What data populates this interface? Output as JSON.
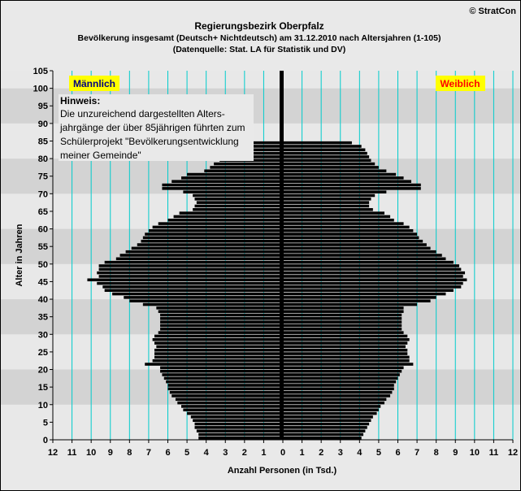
{
  "header": {
    "title": "Regierungsbezirk Oberpfalz",
    "subtitle": "Bevölkerung  insgesamt (Deutsch+ Nichtdeutsch) am 31.12.2010 nach Altersjahren (1-105)",
    "source": "(Datenquelle: Stat. LA für Statistik und DV)",
    "copyright": "© StratCon"
  },
  "labels": {
    "male": "Männlich",
    "female": "Weiblich",
    "note_title": "Hinweis:",
    "note_lines": [
      "Die unzureichend dargestellten Alters-",
      "jahrgänge der über 85jährigen führten zum",
      "Schülerprojekt \"Bevölkerungsentwicklung",
      "meiner Gemeinde\""
    ]
  },
  "colors": {
    "bars": "#000000",
    "gridlines": "#00cccc",
    "label_box": "#ffff00",
    "male_text": "#000080",
    "female_text": "#ff0000",
    "band_light": "#e8e8e8",
    "band_dark": "#d3d3d3"
  },
  "chart_data": {
    "type": "bar",
    "orientation": "horizontal-population-pyramid",
    "xlabel": "Anzahl Personen (in Tsd.)",
    "ylabel": "Alter in Jahren",
    "xlim": [
      -12,
      12
    ],
    "ylim": [
      0,
      105
    ],
    "x_ticks": [
      12,
      11,
      10,
      9,
      8,
      7,
      6,
      5,
      4,
      3,
      2,
      1,
      0,
      1,
      2,
      3,
      4,
      5,
      6,
      7,
      8,
      9,
      10,
      11,
      12
    ],
    "y_ticks": [
      0,
      5,
      10,
      15,
      20,
      25,
      30,
      35,
      40,
      45,
      50,
      55,
      60,
      65,
      70,
      75,
      80,
      85,
      90,
      95,
      100,
      105
    ],
    "grid": true,
    "legend": [
      "Männlich (left)",
      "Weiblich (right)"
    ],
    "ages": [
      0,
      1,
      2,
      3,
      4,
      5,
      6,
      7,
      8,
      9,
      10,
      11,
      12,
      13,
      14,
      15,
      16,
      17,
      18,
      19,
      20,
      21,
      22,
      23,
      24,
      25,
      26,
      27,
      28,
      29,
      30,
      31,
      32,
      33,
      34,
      35,
      36,
      37,
      38,
      39,
      40,
      41,
      42,
      43,
      44,
      45,
      46,
      47,
      48,
      49,
      50,
      51,
      52,
      53,
      54,
      55,
      56,
      57,
      58,
      59,
      60,
      61,
      62,
      63,
      64,
      65,
      66,
      67,
      68,
      69,
      70,
      71,
      72,
      73,
      74,
      75,
      76,
      77,
      78,
      79,
      80,
      81,
      82,
      83,
      84
    ],
    "series": [
      {
        "name": "Männlich",
        "values": [
          4.4,
          4.4,
          4.5,
          4.6,
          4.6,
          4.7,
          4.8,
          5.0,
          5.2,
          5.3,
          5.5,
          5.6,
          5.8,
          5.9,
          6.0,
          6.0,
          6.1,
          6.2,
          6.3,
          6.4,
          6.4,
          7.2,
          6.8,
          6.7,
          6.7,
          6.7,
          6.6,
          6.7,
          6.8,
          6.7,
          6.5,
          6.4,
          6.4,
          6.4,
          6.4,
          6.4,
          6.5,
          6.6,
          7.3,
          8.0,
          8.3,
          8.9,
          9.3,
          9.4,
          9.7,
          10.2,
          9.6,
          9.7,
          9.6,
          9.6,
          9.3,
          8.7,
          8.5,
          8.2,
          7.9,
          7.6,
          7.4,
          7.3,
          7.2,
          7.0,
          6.8,
          6.5,
          6.0,
          5.7,
          5.4,
          4.7,
          4.6,
          4.5,
          4.6,
          4.7,
          5.2,
          6.3,
          6.3,
          5.8,
          5.3,
          5.0,
          4.1,
          3.8,
          3.6,
          3.3,
          2.9,
          2.8,
          2.6,
          2.3,
          1.8
        ]
      },
      {
        "name": "Weiblich",
        "values": [
          4.1,
          4.2,
          4.3,
          4.4,
          4.5,
          4.6,
          4.7,
          4.9,
          5.0,
          5.1,
          5.3,
          5.4,
          5.6,
          5.7,
          5.8,
          5.8,
          5.9,
          6.0,
          6.1,
          6.2,
          6.3,
          6.8,
          6.6,
          6.6,
          6.5,
          6.5,
          6.4,
          6.5,
          6.6,
          6.5,
          6.3,
          6.2,
          6.2,
          6.2,
          6.2,
          6.2,
          6.3,
          6.3,
          7.0,
          7.7,
          8.0,
          8.5,
          8.9,
          9.3,
          9.4,
          9.6,
          9.4,
          9.5,
          9.3,
          9.2,
          8.9,
          8.5,
          8.3,
          8.0,
          7.7,
          7.5,
          7.3,
          7.1,
          7.0,
          6.8,
          6.6,
          6.3,
          5.8,
          5.6,
          5.3,
          4.7,
          4.5,
          4.5,
          4.6,
          4.8,
          5.4,
          7.2,
          7.2,
          6.7,
          6.3,
          5.9,
          5.4,
          5.0,
          4.8,
          4.6,
          4.5,
          4.4,
          4.3,
          4.1,
          3.6
        ]
      }
    ]
  }
}
